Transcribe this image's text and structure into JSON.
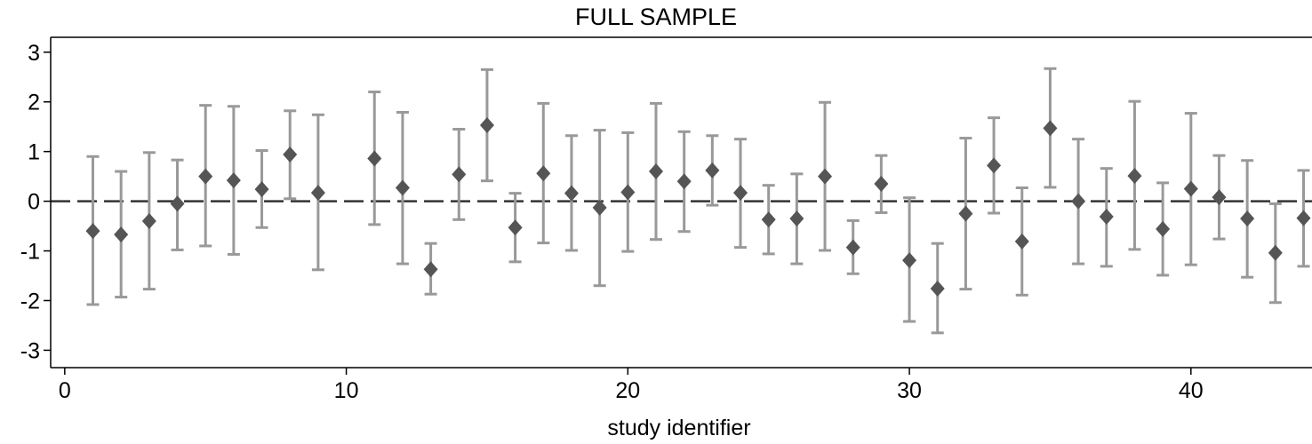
{
  "chart_data": {
    "type": "scatter",
    "title": "FULL SAMPLE",
    "xlabel": "study identifier",
    "ylabel": "",
    "xlim": [
      -0.5,
      44.3
    ],
    "ylim": [
      -3.35,
      3.3
    ],
    "xticks": [
      0,
      10,
      20,
      30,
      40
    ],
    "yticks": [
      3,
      2,
      1,
      0,
      -1,
      -2,
      -3
    ],
    "reference_line": {
      "y": 0,
      "style": "dashed"
    },
    "grid": false,
    "legend": "none",
    "colors": {
      "point": "#555555",
      "errorbar": "#999999",
      "refline": "#333333"
    },
    "series": [
      {
        "marker": "diamond",
        "points": [
          {
            "x": 1,
            "y": -0.6,
            "low": -2.08,
            "high": 0.9
          },
          {
            "x": 2,
            "y": -0.67,
            "low": -1.93,
            "high": 0.6
          },
          {
            "x": 3,
            "y": -0.4,
            "low": -1.77,
            "high": 0.98
          },
          {
            "x": 4,
            "y": -0.05,
            "low": -0.98,
            "high": 0.83
          },
          {
            "x": 5,
            "y": 0.5,
            "low": -0.9,
            "high": 1.93
          },
          {
            "x": 6,
            "y": 0.42,
            "low": -1.07,
            "high": 1.91
          },
          {
            "x": 7,
            "y": 0.24,
            "low": -0.53,
            "high": 1.02
          },
          {
            "x": 8,
            "y": 0.94,
            "low": 0.05,
            "high": 1.82
          },
          {
            "x": 9,
            "y": 0.17,
            "low": -1.38,
            "high": 1.74
          },
          {
            "x": 11,
            "y": 0.86,
            "low": -0.47,
            "high": 2.2
          },
          {
            "x": 12,
            "y": 0.27,
            "low": -1.26,
            "high": 1.79
          },
          {
            "x": 13,
            "y": -1.37,
            "low": -1.87,
            "high": -0.85
          },
          {
            "x": 14,
            "y": 0.54,
            "low": -0.37,
            "high": 1.45
          },
          {
            "x": 15,
            "y": 1.53,
            "low": 0.41,
            "high": 2.65
          },
          {
            "x": 16,
            "y": -0.53,
            "low": -1.22,
            "high": 0.16
          },
          {
            "x": 17,
            "y": 0.56,
            "low": -0.84,
            "high": 1.97
          },
          {
            "x": 18,
            "y": 0.16,
            "low": -0.99,
            "high": 1.32
          },
          {
            "x": 19,
            "y": -0.13,
            "low": -1.7,
            "high": 1.43
          },
          {
            "x": 20,
            "y": 0.18,
            "low": -1.01,
            "high": 1.38
          },
          {
            "x": 21,
            "y": 0.6,
            "low": -0.77,
            "high": 1.97
          },
          {
            "x": 22,
            "y": 0.4,
            "low": -0.61,
            "high": 1.4
          },
          {
            "x": 23,
            "y": 0.62,
            "low": -0.08,
            "high": 1.32
          },
          {
            "x": 24,
            "y": 0.17,
            "low": -0.93,
            "high": 1.25
          },
          {
            "x": 25,
            "y": -0.37,
            "low": -1.06,
            "high": 0.32
          },
          {
            "x": 26,
            "y": -0.35,
            "low": -1.26,
            "high": 0.55
          },
          {
            "x": 27,
            "y": 0.5,
            "low": -0.99,
            "high": 1.99
          },
          {
            "x": 28,
            "y": -0.93,
            "low": -1.46,
            "high": -0.39
          },
          {
            "x": 29,
            "y": 0.35,
            "low": -0.23,
            "high": 0.92
          },
          {
            "x": 30,
            "y": -1.19,
            "low": -2.42,
            "high": 0.07
          },
          {
            "x": 31,
            "y": -1.76,
            "low": -2.65,
            "high": -0.85
          },
          {
            "x": 32,
            "y": -0.25,
            "low": -1.77,
            "high": 1.27
          },
          {
            "x": 33,
            "y": 0.72,
            "low": -0.24,
            "high": 1.68
          },
          {
            "x": 34,
            "y": -0.81,
            "low": -1.89,
            "high": 0.27
          },
          {
            "x": 35,
            "y": 1.47,
            "low": 0.28,
            "high": 2.67
          },
          {
            "x": 36,
            "y": 0.0,
            "low": -1.26,
            "high": 1.25
          },
          {
            "x": 37,
            "y": -0.31,
            "low": -1.31,
            "high": 0.66
          },
          {
            "x": 38,
            "y": 0.51,
            "low": -0.97,
            "high": 2.01
          },
          {
            "x": 39,
            "y": -0.56,
            "low": -1.49,
            "high": 0.37
          },
          {
            "x": 40,
            "y": 0.25,
            "low": -1.28,
            "high": 1.77
          },
          {
            "x": 41,
            "y": 0.08,
            "low": -0.76,
            "high": 0.92
          },
          {
            "x": 42,
            "y": -0.35,
            "low": -1.53,
            "high": 0.82
          },
          {
            "x": 43,
            "y": -1.04,
            "low": -2.04,
            "high": -0.05
          },
          {
            "x": 44,
            "y": -0.34,
            "low": -1.31,
            "high": 0.62
          }
        ]
      }
    ]
  }
}
